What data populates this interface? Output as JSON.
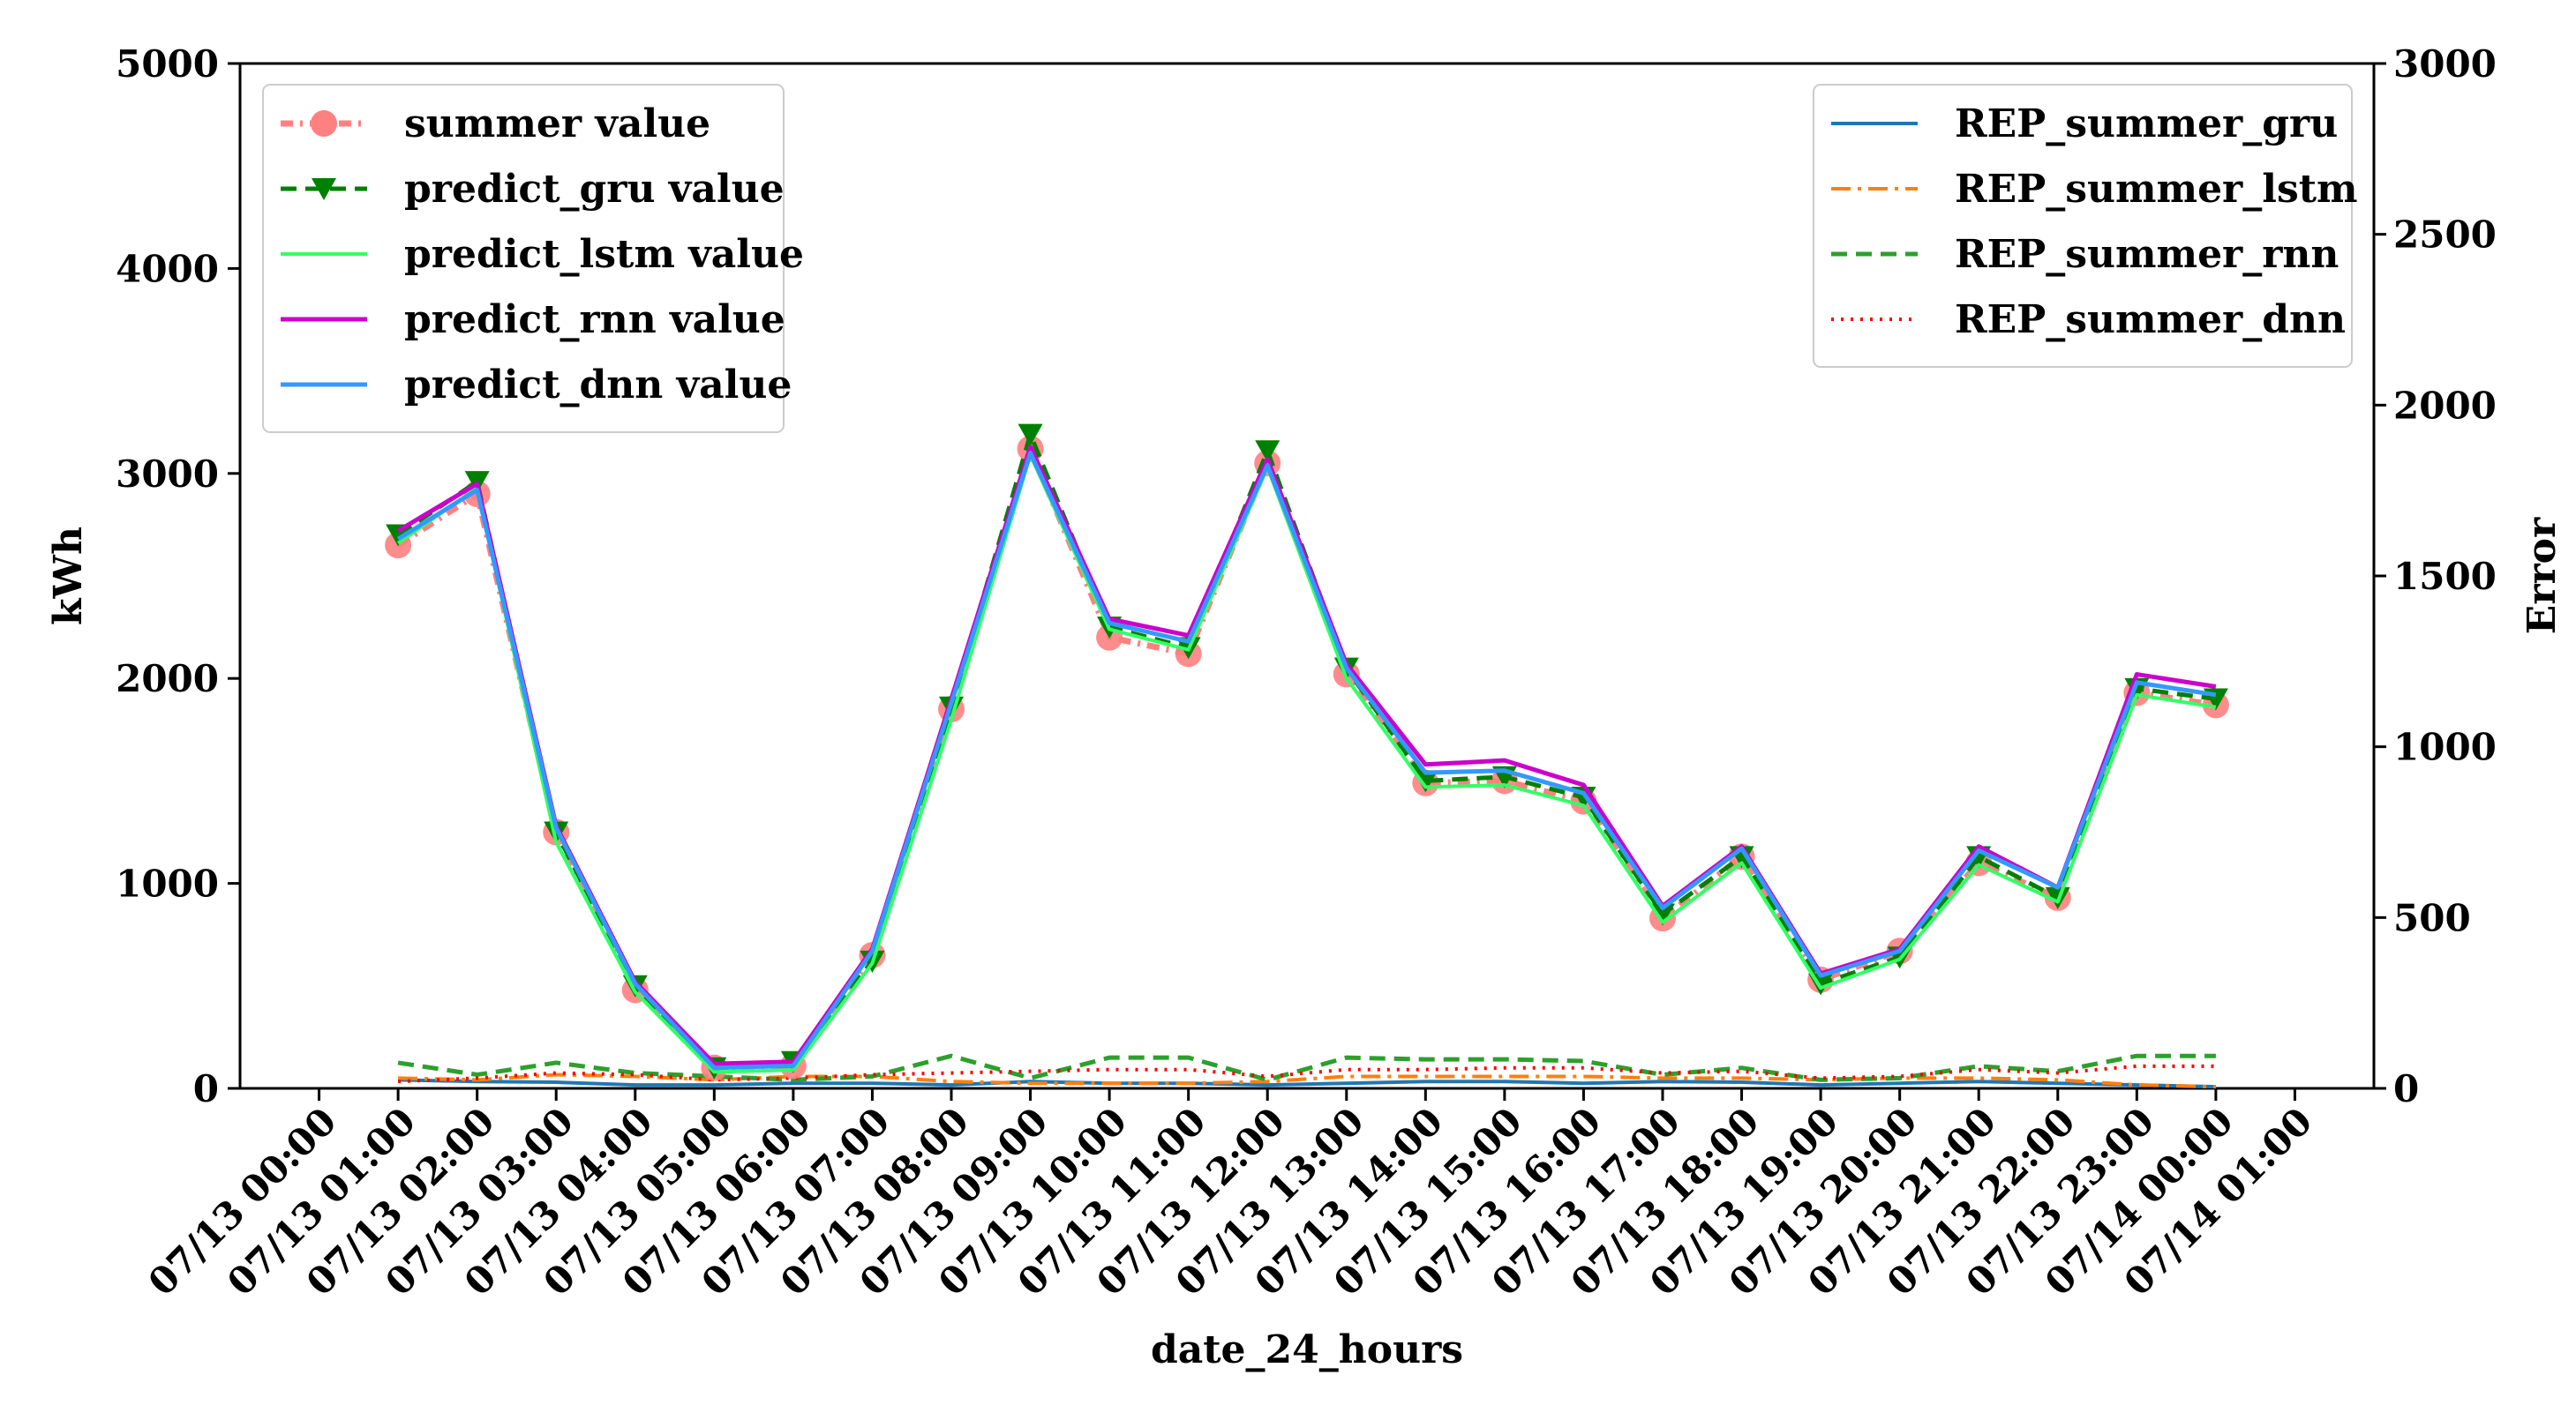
{
  "chart_data": {
    "type": "line",
    "xlabel": "date_24_hours",
    "ylabel_left": "kWh",
    "ylabel_right": "Error",
    "ylim_left": [
      0,
      5000
    ],
    "ylim_right": [
      0,
      3000
    ],
    "yticks_left": [
      "0",
      "1000",
      "2000",
      "3000",
      "4000",
      "5000"
    ],
    "yticks_right": [
      "0",
      "500",
      "1000",
      "1500",
      "2000",
      "2500",
      "3000"
    ],
    "xticks": [
      "07/13 00:00",
      "07/13 01:00",
      "07/13 02:00",
      "07/13 03:00",
      "07/13 04:00",
      "07/13 05:00",
      "07/13 06:00",
      "07/13 07:00",
      "07/13 08:00",
      "07/13 09:00",
      "07/13 10:00",
      "07/13 11:00",
      "07/13 12:00",
      "07/13 13:00",
      "07/13 14:00",
      "07/13 15:00",
      "07/13 16:00",
      "07/13 17:00",
      "07/13 18:00",
      "07/13 19:00",
      "07/13 20:00",
      "07/13 21:00",
      "07/13 22:00",
      "07/13 23:00",
      "07/14 00:00",
      "07/14 01:00"
    ],
    "x_hours": [
      1,
      2,
      3,
      4,
      5,
      6,
      7,
      8,
      9,
      10,
      11,
      12,
      13,
      14,
      15,
      16,
      17,
      18,
      19,
      20,
      21,
      22,
      23,
      24
    ],
    "series_left": [
      {
        "name": "summer value",
        "color": "#ff8080",
        "values": [
          2650,
          2900,
          1250,
          480,
          100,
          110,
          650,
          1850,
          3120,
          2200,
          2120,
          3050,
          2020,
          1490,
          1500,
          1400,
          830,
          1130,
          530,
          670,
          1100,
          930,
          1930,
          1870
        ]
      },
      {
        "name": "predict_gru value",
        "color": "#008000",
        "values": [
          2700,
          2960,
          1250,
          500,
          100,
          130,
          620,
          1860,
          3190,
          2250,
          2150,
          3110,
          2050,
          1500,
          1520,
          1420,
          850,
          1130,
          510,
          640,
          1130,
          930,
          1950,
          1900
        ]
      },
      {
        "name": "predict_lstm value",
        "color": "#33ff66",
        "values": [
          2660,
          2930,
          1200,
          470,
          80,
          90,
          610,
          1800,
          3090,
          2240,
          2140,
          3030,
          2000,
          1470,
          1480,
          1380,
          810,
          1100,
          490,
          630,
          1090,
          910,
          1920,
          1860
        ]
      },
      {
        "name": "predict_rnn value",
        "color": "#cc00cc",
        "values": [
          2720,
          2950,
          1280,
          520,
          120,
          130,
          680,
          1900,
          3130,
          2290,
          2210,
          3070,
          2070,
          1580,
          1600,
          1480,
          890,
          1180,
          560,
          680,
          1180,
          980,
          2020,
          1960
        ]
      },
      {
        "name": "predict_dnn value",
        "color": "#3399ff",
        "values": [
          2680,
          2920,
          1270,
          510,
          100,
          110,
          670,
          1880,
          3100,
          2270,
          2180,
          3040,
          2050,
          1540,
          1550,
          1440,
          880,
          1170,
          550,
          670,
          1160,
          980,
          1980,
          1920
        ]
      }
    ],
    "series_right": [
      {
        "name": "REP_summer_gru",
        "color": "#1f77b4",
        "values": [
          25,
          20,
          18,
          10,
          10,
          15,
          15,
          10,
          20,
          15,
          15,
          10,
          15,
          20,
          20,
          15,
          20,
          18,
          10,
          15,
          20,
          15,
          10,
          5
        ]
      },
      {
        "name": "REP_summer_lstm",
        "color": "#ff7f0e",
        "values": [
          30,
          25,
          40,
          35,
          25,
          35,
          35,
          20,
          15,
          15,
          15,
          20,
          35,
          35,
          35,
          35,
          30,
          30,
          25,
          30,
          30,
          25,
          10,
          5
        ]
      },
      {
        "name": "REP_summer_rnn",
        "color": "#2ca02c",
        "values": [
          75,
          40,
          75,
          45,
          35,
          25,
          35,
          95,
          30,
          90,
          90,
          25,
          90,
          85,
          85,
          80,
          40,
          60,
          25,
          30,
          65,
          50,
          95,
          95
        ]
      },
      {
        "name": "REP_summer_dnn",
        "color": "#ff0000",
        "values": [
          20,
          30,
          45,
          40,
          25,
          30,
          40,
          45,
          50,
          55,
          55,
          35,
          55,
          55,
          60,
          60,
          45,
          50,
          30,
          35,
          55,
          45,
          65,
          65
        ]
      }
    ],
    "legend_left": {
      "placement": "upper-left"
    },
    "legend_right": {
      "placement": "upper-right"
    }
  }
}
